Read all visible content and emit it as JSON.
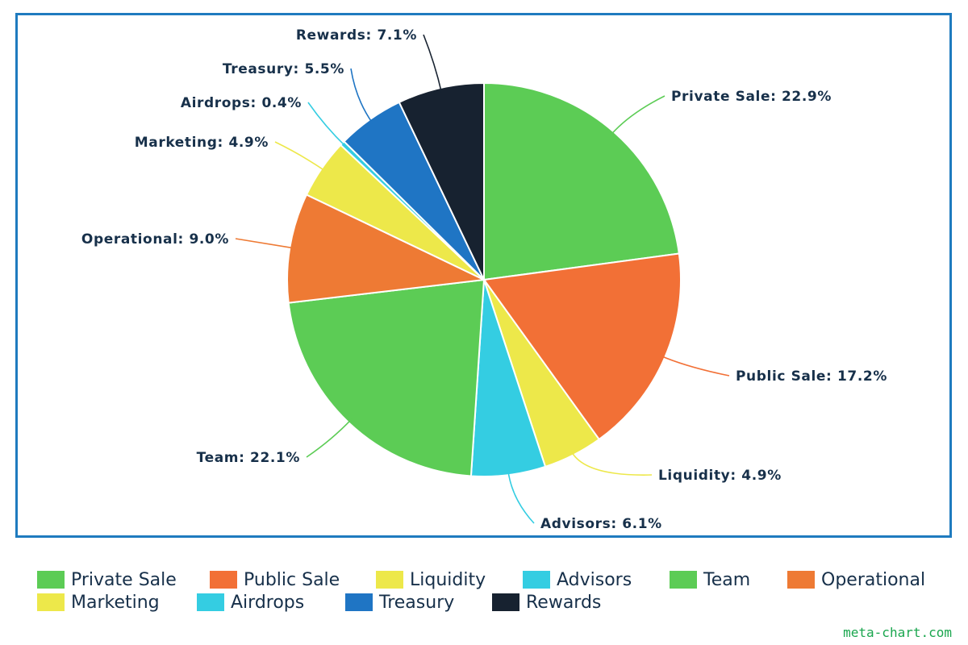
{
  "chart_data": {
    "type": "pie",
    "title": "",
    "slices": [
      {
        "label": "Private Sale",
        "value": 22.9,
        "display": "Private Sale: 22.9%",
        "color": "#5ccc55",
        "line": "#5ccc55"
      },
      {
        "label": "Public Sale",
        "value": 17.2,
        "display": "Public Sale: 17.2%",
        "color": "#f27036",
        "line": "#f27036"
      },
      {
        "label": "Liquidity",
        "value": 4.9,
        "display": "Liquidity: 4.9%",
        "color": "#ede84a",
        "line": "#ede84a"
      },
      {
        "label": "Advisors",
        "value": 6.1,
        "display": "Advisors: 6.1%",
        "color": "#34cde2",
        "line": "#34cde2"
      },
      {
        "label": "Team",
        "value": 22.1,
        "display": "Team: 22.1%",
        "color": "#5ccc55",
        "line": "#5ccc55"
      },
      {
        "label": "Operational",
        "value": 9.0,
        "display": "Operational: 9.0%",
        "color": "#ee7a34",
        "line": "#ee7a34"
      },
      {
        "label": "Marketing",
        "value": 4.9,
        "display": "Marketing: 4.9%",
        "color": "#ede84a",
        "line": "#ede84a"
      },
      {
        "label": "Airdrops",
        "value": 0.4,
        "display": "Airdrops: 0.4%",
        "color": "#34cde2",
        "line": "#34cde2"
      },
      {
        "label": "Treasury",
        "value": 5.5,
        "display": "Treasury: 5.5%",
        "color": "#1f75c4",
        "line": "#1f75c4"
      },
      {
        "label": "Rewards",
        "value": 7.1,
        "display": "Rewards: 7.1%",
        "color": "#172230",
        "line": "#172230"
      }
    ],
    "legend_position": "bottom"
  },
  "watermark": "meta-chart.com"
}
